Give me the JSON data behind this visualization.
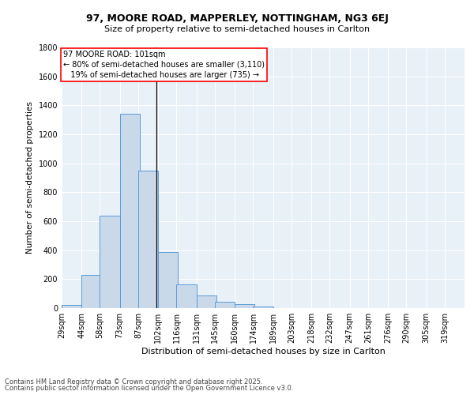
{
  "title1": "97, MOORE ROAD, MAPPERLEY, NOTTINGHAM, NG3 6EJ",
  "title2": "Size of property relative to semi-detached houses in Carlton",
  "xlabel": "Distribution of semi-detached houses by size in Carlton",
  "ylabel": "Number of semi-detached properties",
  "footer1": "Contains HM Land Registry data © Crown copyright and database right 2025.",
  "footer2": "Contains public sector information licensed under the Open Government Licence v3.0.",
  "bin_labels": [
    "29sqm",
    "44sqm",
    "58sqm",
    "73sqm",
    "87sqm",
    "102sqm",
    "116sqm",
    "131sqm",
    "145sqm",
    "160sqm",
    "174sqm",
    "189sqm",
    "203sqm",
    "218sqm",
    "232sqm",
    "247sqm",
    "261sqm",
    "276sqm",
    "290sqm",
    "305sqm",
    "319sqm"
  ],
  "bin_edges": [
    29,
    44,
    58,
    73,
    87,
    102,
    116,
    131,
    145,
    160,
    174,
    189,
    203,
    218,
    232,
    247,
    261,
    276,
    290,
    305,
    319
  ],
  "bar_heights": [
    20,
    230,
    640,
    1340,
    950,
    390,
    165,
    90,
    45,
    25,
    10,
    2,
    0,
    0,
    0,
    0,
    0,
    0,
    0,
    0
  ],
  "bar_color": "#c9d9ea",
  "bar_edge_color": "#5b9bd5",
  "property_line_x": 101,
  "annotation_text1": "97 MOORE ROAD: 101sqm",
  "annotation_text2": "← 80% of semi-detached houses are smaller (3,110)",
  "annotation_text3": "   19% of semi-detached houses are larger (735) →",
  "annotation_box_color": "white",
  "annotation_box_edge": "red",
  "ylim": [
    0,
    1800
  ],
  "yticks": [
    0,
    200,
    400,
    600,
    800,
    1000,
    1200,
    1400,
    1600,
    1800
  ],
  "plot_bg_color": "#e8f0f8",
  "fig_bg_color": "#ffffff",
  "grid_color": "#ffffff",
  "title1_fontsize": 9,
  "title2_fontsize": 8,
  "ylabel_fontsize": 7.5,
  "xlabel_fontsize": 8,
  "tick_fontsize": 7,
  "footer_fontsize": 6,
  "annot_fontsize": 7
}
